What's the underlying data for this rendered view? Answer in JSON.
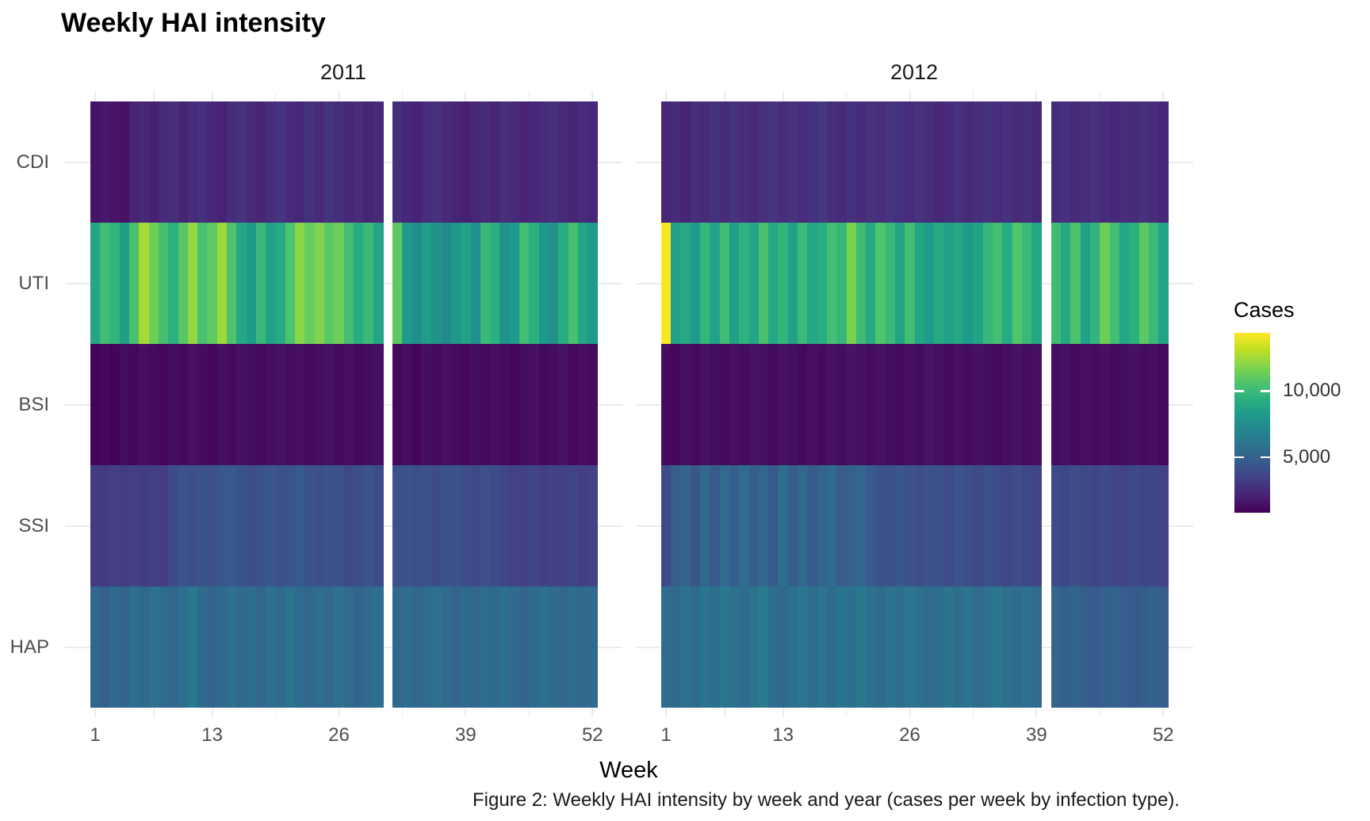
{
  "title": "Weekly HAI intensity",
  "caption": "Figure 2: Weekly HAI intensity by week and year (cases per week by infection type).",
  "axes": {
    "x_label": "Week",
    "x_ticks": [
      "1",
      "13",
      "26",
      "39",
      "52"
    ],
    "x_tick_weeks": [
      1,
      13,
      26,
      39,
      52
    ],
    "x_minor_weeks": [
      7,
      19.5,
      32.5,
      45.5
    ],
    "y_categories": [
      "CDI",
      "UTI",
      "BSI",
      "SSI",
      "HAP"
    ]
  },
  "strips": [
    {
      "label": "2011"
    },
    {
      "label": "2012"
    }
  ],
  "legend": {
    "title": "Cases",
    "tick_labels": [
      "10,000",
      "5,000"
    ],
    "tick_values": [
      10000,
      5000
    ]
  },
  "colors": {
    "viridis": [
      "#440154",
      "#482173",
      "#433E85",
      "#38598C",
      "#2D708E",
      "#25858E",
      "#1E9B8A",
      "#2BB07F",
      "#51C56A",
      "#85D54A",
      "#C2DF23",
      "#FDE725"
    ],
    "grid": "#ebebeb",
    "tick_text": "#4d4d4d",
    "strip_text": "#1a1a1a"
  },
  "chart_data": {
    "type": "heatmap",
    "title": "Weekly HAI intensity",
    "xlabel": "Week",
    "x_range": [
      1,
      52
    ],
    "x_breaks": [
      1,
      13,
      26,
      39,
      52
    ],
    "rows": [
      "CDI",
      "UTI",
      "BSI",
      "SSI",
      "HAP"
    ],
    "legend_title": "Cases",
    "value_domain": [
      800,
      14400
    ],
    "legend_breaks": [
      5000,
      10000
    ],
    "missing_weeks": {
      "2011": 31,
      "2012": 40
    },
    "facets": [
      {
        "year": "2011",
        "values": {
          "CDI": [
            1500,
            1700,
            1600,
            1400,
            2100,
            2300,
            2000,
            2400,
            2600,
            2200,
            2500,
            2700,
            2300,
            2100,
            2500,
            2800,
            2400,
            2200,
            2600,
            2900,
            2500,
            2300,
            2700,
            2400,
            2800,
            2600,
            2300,
            2500,
            2200,
            2400,
            null,
            2600,
            2300,
            2100,
            2500,
            2700,
            2400,
            2200,
            2000,
            2300,
            2500,
            2200,
            2600,
            2400,
            2100,
            2300,
            2500,
            2700,
            2400,
            2200,
            2500,
            2300
          ],
          "UTI": [
            8800,
            10200,
            9700,
            8400,
            10400,
            12600,
            11400,
            10300,
            9500,
            10800,
            12200,
            10400,
            11000,
            12400,
            10600,
            8900,
            8300,
            9900,
            8600,
            9100,
            10500,
            12000,
            11200,
            11800,
            10900,
            11400,
            10200,
            9300,
            10000,
            8800,
            null,
            11000,
            8100,
            7500,
            8400,
            7800,
            7300,
            8000,
            8600,
            7600,
            9900,
            9500,
            7800,
            8200,
            10200,
            9400,
            8000,
            7600,
            9200,
            10400,
            8800,
            8200
          ],
          "BSI": [
            1000,
            1100,
            950,
            1200,
            1050,
            1300,
            1150,
            1000,
            1250,
            1100,
            1350,
            1200,
            1050,
            1300,
            1150,
            1400,
            1250,
            1100,
            1300,
            1450,
            1200,
            1350,
            1100,
            1250,
            1400,
            1150,
            1300,
            1050,
            1200,
            1350,
            null,
            1100,
            1250,
            1000,
            1300,
            1150,
            1350,
            1200,
            1050,
            1250,
            1100,
            1300,
            1150,
            1000,
            1200,
            1350,
            1100,
            1250,
            1400,
            1150,
            1300,
            1200
          ],
          "SSI": [
            3200,
            3100,
            3300,
            3150,
            3400,
            3200,
            3350,
            3250,
            3900,
            4200,
            4000,
            4300,
            4100,
            4400,
            4500,
            4300,
            4000,
            4200,
            4400,
            4100,
            4300,
            4500,
            4200,
            4000,
            4300,
            4100,
            3800,
            4000,
            4200,
            3900,
            null,
            4100,
            4300,
            4000,
            4200,
            3900,
            4100,
            4300,
            4000,
            3800,
            4100,
            3900,
            3700,
            3500,
            3400,
            3600,
            3300,
            3500,
            3400,
            3600,
            3300,
            3500
          ],
          "HAP": [
            5200,
            4900,
            5400,
            5100,
            5600,
            5300,
            5800,
            5500,
            5200,
            5700,
            6300,
            5400,
            5100,
            5500,
            5800,
            5300,
            5600,
            5200,
            5700,
            5400,
            5900,
            5500,
            5200,
            5600,
            5300,
            5800,
            5500,
            5100,
            5400,
            5700,
            null,
            5300,
            5600,
            5200,
            5500,
            5800,
            5400,
            5100,
            5500,
            5200,
            5600,
            5300,
            5700,
            5400,
            5100,
            5500,
            5800,
            5400,
            5200,
            5600,
            5300,
            5500
          ]
        }
      },
      {
        "year": "2012",
        "values": {
          "CDI": [
            2300,
            2500,
            2200,
            2600,
            2400,
            2700,
            2500,
            2800,
            2600,
            2400,
            2700,
            2900,
            2600,
            2800,
            2500,
            2700,
            3000,
            2600,
            2400,
            2700,
            2500,
            2800,
            2600,
            2900,
            2700,
            2500,
            2800,
            2600,
            2300,
            2500,
            2700,
            2400,
            2600,
            2800,
            2500,
            2700,
            2400,
            2600,
            2300,
            null,
            2500,
            2700,
            2400,
            2600,
            2800,
            2500,
            2300,
            2600,
            2400,
            2700,
            2500,
            2300
          ],
          "UTI": [
            14300,
            8600,
            9000,
            8200,
            9800,
            8700,
            10100,
            8400,
            9600,
            8800,
            10400,
            9000,
            9700,
            8500,
            10000,
            8900,
            9200,
            10300,
            9800,
            11700,
            10100,
            9000,
            10600,
            9900,
            8700,
            10200,
            8800,
            8300,
            9100,
            8600,
            8900,
            8200,
            8700,
            9800,
            10300,
            9200,
            10700,
            9900,
            8800,
            null,
            10100,
            9000,
            10500,
            8600,
            9700,
            11300,
            10200,
            8800,
            9500,
            10900,
            10000,
            8700
          ],
          "BSI": [
            1200,
            1050,
            1300,
            1150,
            1400,
            1250,
            1100,
            1350,
            1200,
            1450,
            1300,
            1150,
            1400,
            1250,
            1100,
            1300,
            1150,
            1400,
            1250,
            1500,
            1350,
            1200,
            1400,
            1250,
            1100,
            1350,
            1200,
            1450,
            1300,
            1150,
            1350,
            1200,
            1400,
            1250,
            1100,
            1300,
            1450,
            1200,
            1350,
            null,
            1250,
            1400,
            1150,
            1300,
            1200,
            1350,
            1100,
            1250,
            1400,
            1200,
            1300,
            1150
          ],
          "SSI": [
            3900,
            4700,
            5100,
            4400,
            5300,
            4600,
            5400,
            4800,
            5500,
            4700,
            5200,
            4500,
            5600,
            4800,
            5300,
            4600,
            5100,
            5400,
            4700,
            5000,
            5200,
            4600,
            4300,
            4100,
            4400,
            4200,
            4000,
            4300,
            4100,
            3900,
            4200,
            4000,
            3800,
            4100,
            3900,
            3700,
            4000,
            3800,
            3600,
            null,
            3900,
            3700,
            4000,
            3800,
            3600,
            3900,
            3700,
            3500,
            3800,
            3600,
            3700,
            3500
          ],
          "HAP": [
            5600,
            5300,
            5800,
            5500,
            6000,
            5700,
            6200,
            5800,
            5500,
            5900,
            6400,
            5600,
            5300,
            5700,
            6100,
            5600,
            5900,
            5500,
            6000,
            5700,
            6200,
            5800,
            5500,
            5900,
            5600,
            6100,
            5800,
            5400,
            5700,
            6000,
            5600,
            5900,
            5500,
            5800,
            6100,
            5700,
            5400,
            5800,
            5500,
            null,
            5200,
            4900,
            5100,
            4800,
            4600,
            4900,
            5100,
            4700,
            4500,
            4800,
            5000,
            4700
          ]
        }
      }
    ]
  }
}
